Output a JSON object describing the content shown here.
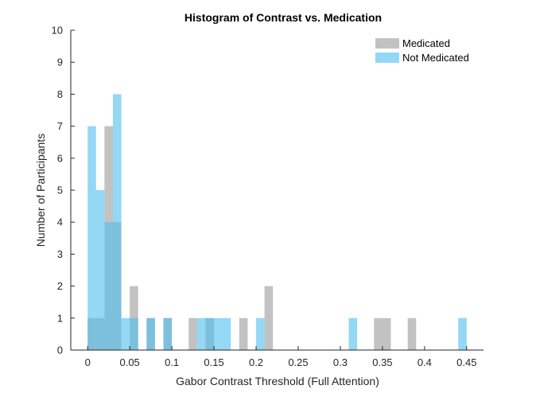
{
  "chart_data": {
    "type": "bar",
    "title": "Histogram of Contrast vs. Medication",
    "xlabel": "Gabor Contrast Threshold (Full Attention)",
    "ylabel": "Number of Participants",
    "xlim": [
      -0.02,
      0.47
    ],
    "ylim": [
      0,
      10
    ],
    "xticks": [
      "0",
      "0.05",
      "0.1",
      "0.15",
      "0.2",
      "0.25",
      "0.3",
      "0.35",
      "0.4",
      "0.45"
    ],
    "yticks": [
      "0",
      "1",
      "2",
      "3",
      "4",
      "5",
      "6",
      "7",
      "8",
      "9",
      "10"
    ],
    "bin_width": 0.01,
    "legend_position": "top-right",
    "grid": false,
    "series": [
      {
        "name": "Medicated",
        "color": "#999999",
        "bins": [
          {
            "x0": 0.0,
            "count": 1
          },
          {
            "x0": 0.01,
            "count": 1
          },
          {
            "x0": 0.02,
            "count": 7
          },
          {
            "x0": 0.03,
            "count": 4
          },
          {
            "x0": 0.05,
            "count": 2
          },
          {
            "x0": 0.07,
            "count": 1
          },
          {
            "x0": 0.09,
            "count": 1
          },
          {
            "x0": 0.12,
            "count": 1
          },
          {
            "x0": 0.14,
            "count": 1
          },
          {
            "x0": 0.18,
            "count": 1
          },
          {
            "x0": 0.21,
            "count": 2
          },
          {
            "x0": 0.34,
            "count": 1
          },
          {
            "x0": 0.35,
            "count": 1
          },
          {
            "x0": 0.38,
            "count": 1
          }
        ]
      },
      {
        "name": "Not Medicated",
        "color": "#4DBEEE",
        "bins": [
          {
            "x0": 0.0,
            "count": 7
          },
          {
            "x0": 0.01,
            "count": 5
          },
          {
            "x0": 0.02,
            "count": 4
          },
          {
            "x0": 0.03,
            "count": 8
          },
          {
            "x0": 0.04,
            "count": 1
          },
          {
            "x0": 0.05,
            "count": 1
          },
          {
            "x0": 0.07,
            "count": 1
          },
          {
            "x0": 0.09,
            "count": 1
          },
          {
            "x0": 0.13,
            "count": 1
          },
          {
            "x0": 0.14,
            "count": 1
          },
          {
            "x0": 0.15,
            "count": 1
          },
          {
            "x0": 0.16,
            "count": 1
          },
          {
            "x0": 0.2,
            "count": 1
          },
          {
            "x0": 0.31,
            "count": 1
          },
          {
            "x0": 0.44,
            "count": 1
          }
        ]
      }
    ]
  }
}
